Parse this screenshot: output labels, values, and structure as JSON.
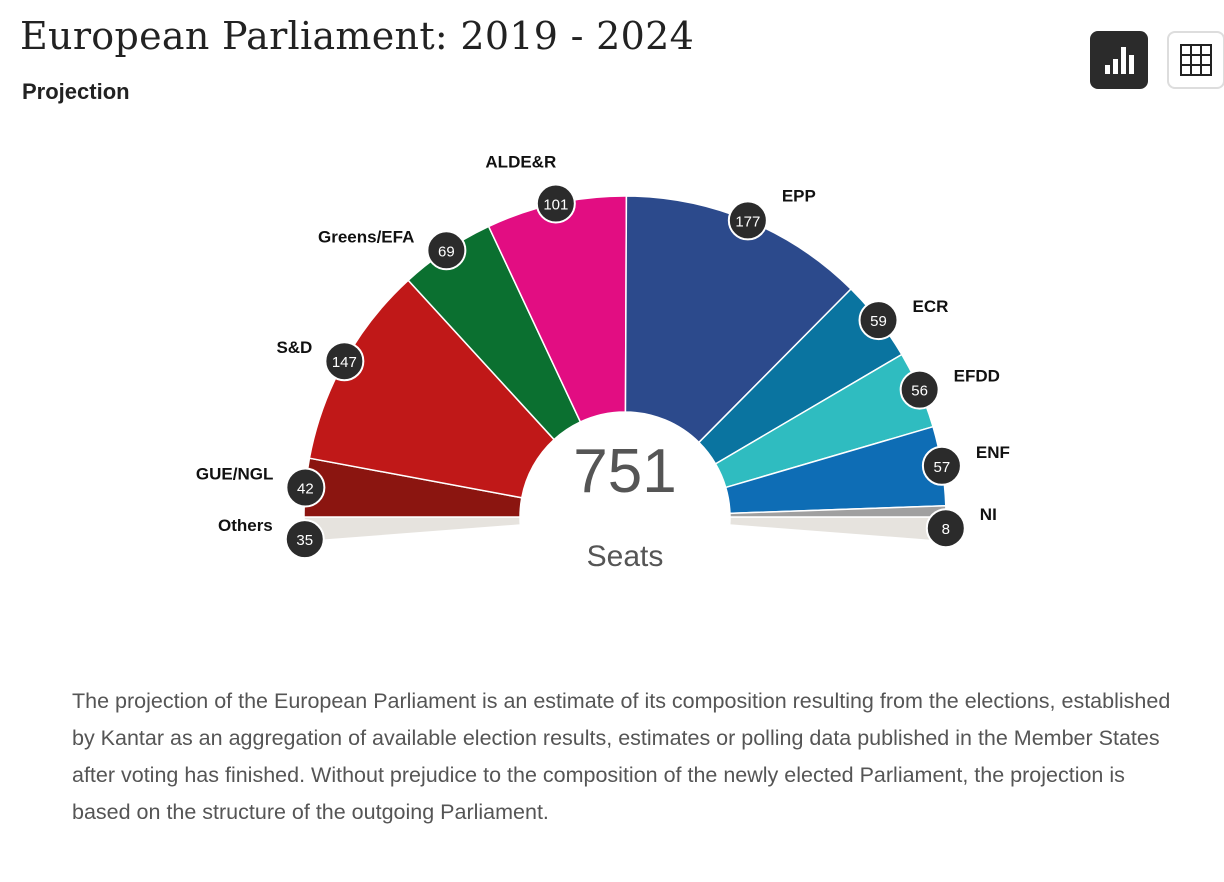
{
  "header": {
    "title": "European Parliament: 2019 - 2024",
    "subtitle": "Projection"
  },
  "toolbar": {
    "chart_view": "bar-chart-icon",
    "table_view": "grid-table-icon"
  },
  "chart_data": {
    "type": "parliament-semicircle",
    "total": 751,
    "total_label": "Seats",
    "parties": [
      {
        "name": "Others",
        "seats": 35,
        "color": "#e6e3de"
      },
      {
        "name": "GUE/NGL",
        "seats": 42,
        "color": "#8b1510"
      },
      {
        "name": "S&D",
        "seats": 147,
        "color": "#c01818"
      },
      {
        "name": "Greens/EFA",
        "seats": 69,
        "color": "#0b7030"
      },
      {
        "name": "ALDE&R",
        "seats": 101,
        "color": "#e20d82"
      },
      {
        "name": "EPP",
        "seats": 177,
        "color": "#2c4a8c"
      },
      {
        "name": "ECR",
        "seats": 59,
        "color": "#0a74a0"
      },
      {
        "name": "EFDD",
        "seats": 56,
        "color": "#2fbcc0"
      },
      {
        "name": "ENF",
        "seats": 57,
        "color": "#0e6db5"
      },
      {
        "name": "NI",
        "seats": 8,
        "color": "#a0a0a0"
      }
    ]
  },
  "description": "The projection of the European Parliament is an estimate of its composition resulting from the elections, established by Kantar as an aggregation of available election results, estimates or polling data published in the Member States after voting has finished. Without prejudice to the composition of the newly elected Parliament, the projection is based on the structure of the outgoing Parliament."
}
